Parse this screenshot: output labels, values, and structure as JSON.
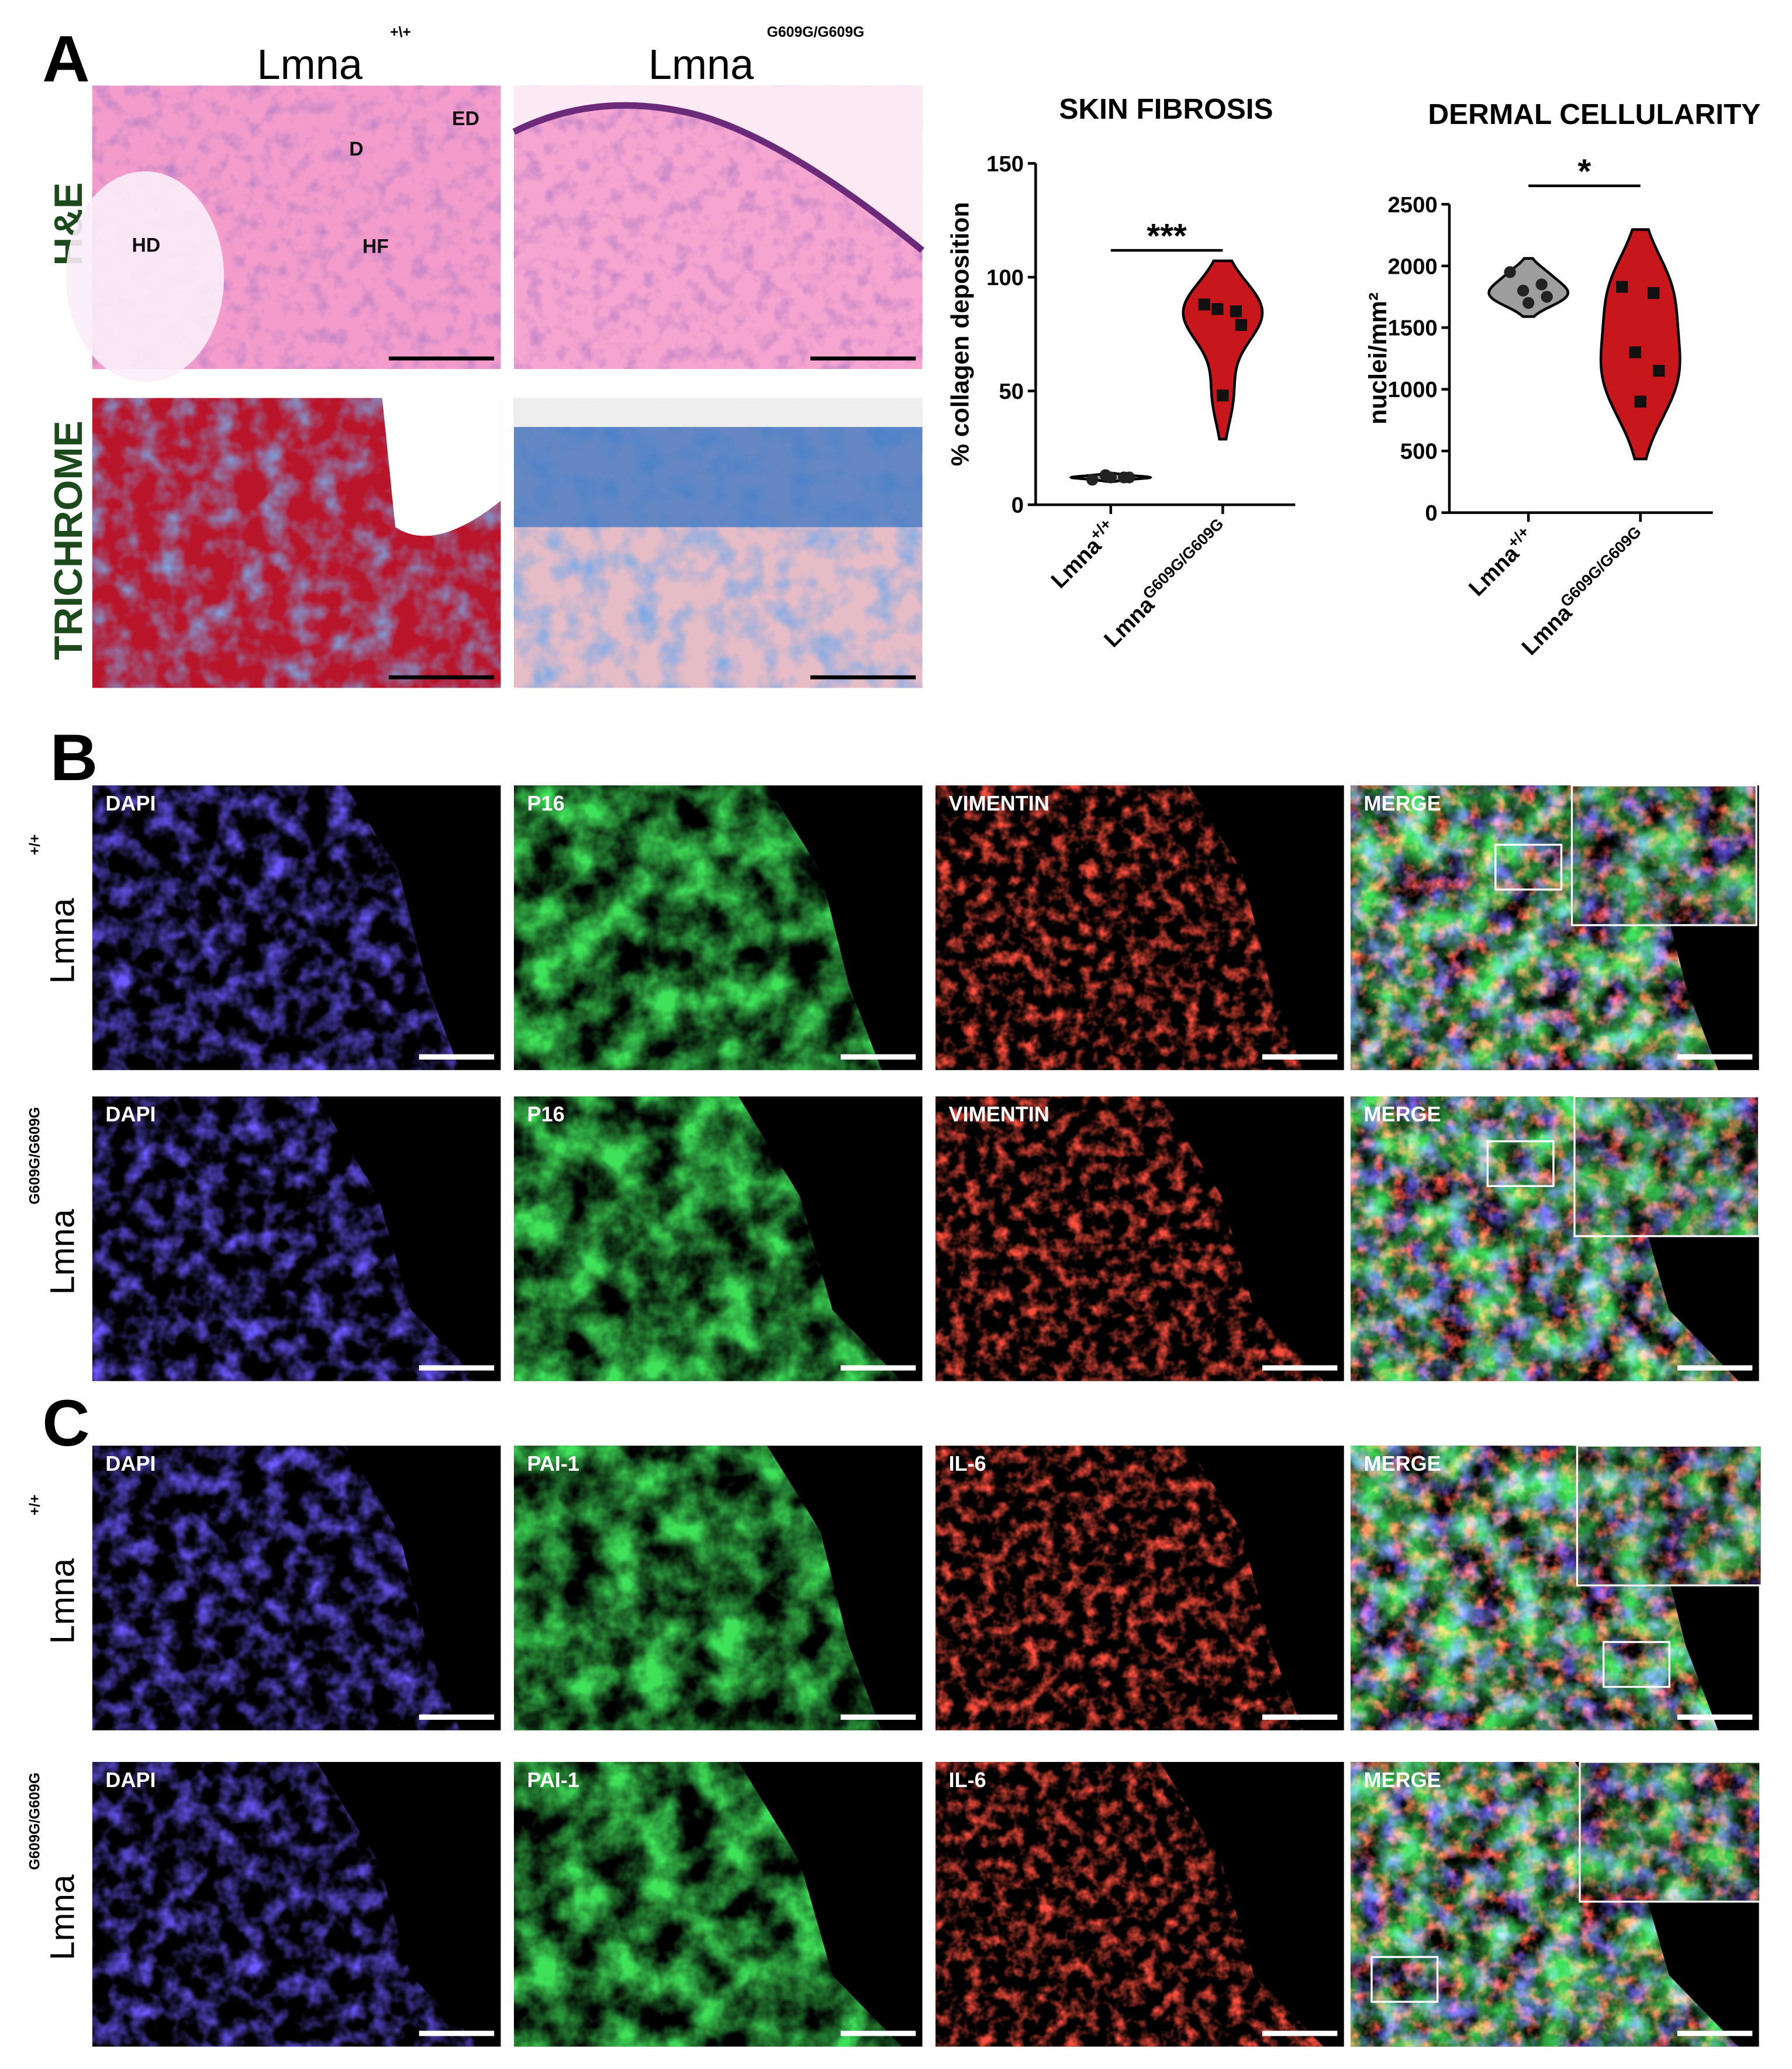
{
  "panel_labels": [
    "A",
    "B",
    "C"
  ],
  "panel_a": {
    "column_headers": [
      {
        "text": "Lmna",
        "superscript": "+\\+"
      },
      {
        "text": "Lmna",
        "superscript": "G609G/G609G"
      }
    ],
    "row_labels": [
      "H&E",
      "TRICHROME"
    ],
    "annotations": [
      "ED",
      "D",
      "HD",
      "HF"
    ]
  },
  "panel_b": {
    "rows": [
      {
        "label": "Lmna",
        "superscript": "+/+",
        "channels": [
          "DAPI",
          "P16",
          "VIMENTIN",
          "MERGE"
        ]
      },
      {
        "label": "Lmna",
        "superscript": "G609G/G609G",
        "channels": [
          "DAPI",
          "P16",
          "VIMENTIN",
          "MERGE"
        ]
      }
    ]
  },
  "panel_c": {
    "rows": [
      {
        "label": "Lmna",
        "superscript": "+/+",
        "channels": [
          "DAPI",
          "PAI-1",
          "IL-6",
          "MERGE"
        ]
      },
      {
        "label": "Lmna",
        "superscript": "G609G/G609G",
        "channels": [
          "DAPI",
          "PAI-1",
          "IL-6",
          "MERGE"
        ]
      }
    ]
  },
  "chart_data": [
    {
      "type": "violin",
      "title": "SKIN FIBROSIS",
      "y_label": "% collagen deposition",
      "categories": [
        "Lmna",
        "Lmna"
      ],
      "category_superscripts": [
        "+/+",
        "G609G/G609G"
      ],
      "values": [
        [
          11,
          12,
          13,
          12,
          12
        ],
        [
          88,
          85,
          86,
          79,
          48
        ]
      ],
      "colors": [
        "#9e9e9e",
        "#c8161d"
      ],
      "ylim": [
        0,
        150
      ],
      "yticks": [
        0,
        50,
        100,
        150
      ],
      "significance": "***"
    },
    {
      "type": "violin",
      "title": "DERMAL CELLULARITY",
      "y_label": "nuclei/mm²",
      "categories": [
        "Lmna",
        "Lmna"
      ],
      "category_superscripts": [
        "+/+",
        "G609G/G609G"
      ],
      "values": [
        [
          1950,
          1850,
          1800,
          1750,
          1700
        ],
        [
          1830,
          1780,
          1300,
          1150,
          900
        ]
      ],
      "colors": [
        "#9e9e9e",
        "#c8161d"
      ],
      "ylim": [
        0,
        2500
      ],
      "yticks": [
        0,
        500,
        1000,
        1500,
        2000,
        2500
      ],
      "significance": "*"
    }
  ]
}
